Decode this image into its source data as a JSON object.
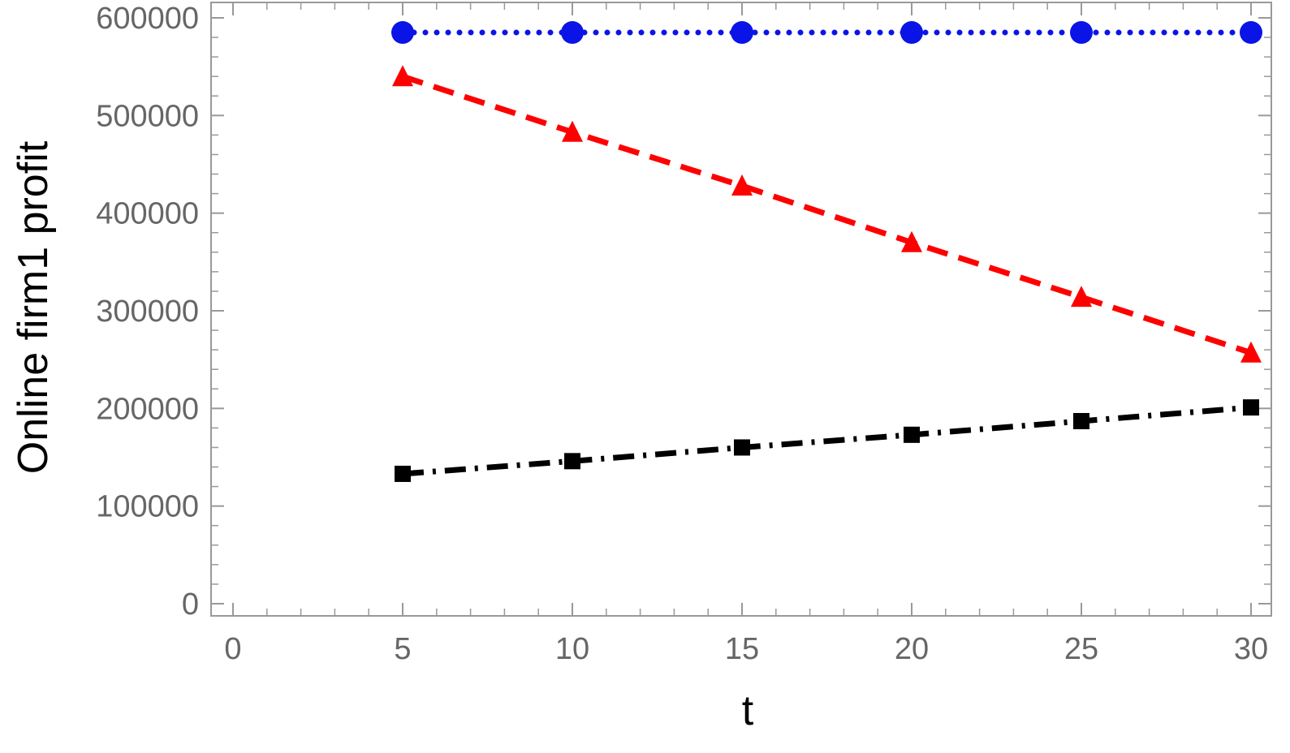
{
  "chart_data": {
    "type": "line",
    "title": "",
    "xlabel": "t",
    "ylabel": "Online firm1 profit",
    "xlim": [
      0,
      30
    ],
    "ylim": [
      0,
      600000
    ],
    "x_ticks": [
      0,
      5,
      10,
      15,
      20,
      25,
      30
    ],
    "x_tick_labels": [
      "0",
      "5",
      "10",
      "15",
      "20",
      "25",
      "30"
    ],
    "y_ticks": [
      0,
      100000,
      200000,
      300000,
      400000,
      500000,
      600000
    ],
    "y_tick_labels": [
      "0",
      "100000",
      "200000",
      "300000",
      "400000",
      "500000",
      "600000"
    ],
    "x_minor_step": 1,
    "y_minor_step": 20000,
    "grid": false,
    "legend": "none",
    "x": [
      5,
      10,
      15,
      20,
      25,
      30
    ],
    "series": [
      {
        "values": [
          585000,
          585000,
          585000,
          585000,
          585000,
          585000
        ],
        "color": "#0a14e6",
        "line_style": "dotted",
        "marker": "circle"
      },
      {
        "values": [
          540000,
          483000,
          428000,
          370000,
          314000,
          257000
        ],
        "color": "#ff0000",
        "line_style": "dashed",
        "marker": "triangle"
      },
      {
        "values": [
          133000,
          146000,
          160000,
          173000,
          187000,
          201000
        ],
        "color": "#000000",
        "line_style": "dashdot",
        "marker": "square"
      }
    ]
  }
}
